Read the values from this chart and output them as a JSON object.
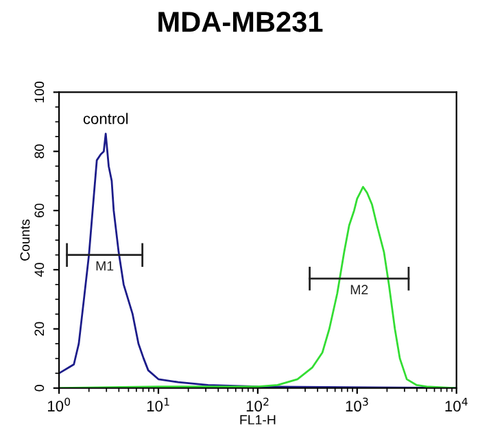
{
  "chart_data": {
    "type": "line",
    "title": "MDA-MB231",
    "xlabel": "FL1-H",
    "ylabel": "Counts",
    "log": "x",
    "grid": false,
    "legend": false,
    "xlim": [
      1,
      10000
    ],
    "xticks": [
      {
        "value": 1,
        "label": "10$^{0}$"
      },
      {
        "value": 10,
        "label": "10$^{1}$"
      },
      {
        "value": 100,
        "label": "10$^{2}$"
      },
      {
        "value": 1000,
        "label": "10$^{3}$"
      },
      {
        "value": 10000,
        "label": "10$^{4}$"
      }
    ],
    "ylim": [
      0,
      100
    ],
    "yticks": [
      0,
      20,
      40,
      60,
      80,
      100
    ],
    "annotations": [
      "control"
    ],
    "series": [
      {
        "color": "#1c1c8a",
        "x": [
          1,
          1.26,
          1.41,
          1.58,
          1.78,
          2,
          2.24,
          2.4,
          2.63,
          2.82,
          2.95,
          3.16,
          3.39,
          3.55,
          3.98,
          4.47,
          5.5,
          6.3,
          7.1,
          7.9,
          10,
          15.8,
          31.6,
          100,
          10000
        ],
        "values": [
          5,
          7,
          8,
          15,
          30,
          45,
          65,
          77,
          79,
          80,
          86,
          75,
          70,
          60,
          46,
          35,
          25,
          15,
          10,
          6,
          3,
          2,
          1,
          0.5,
          0
        ]
      },
      {
        "color": "#33dd33",
        "x": [
          1,
          10,
          100,
          158,
          251,
          355,
          447,
          525,
          631,
          741,
          832,
          933,
          1000,
          1072,
          1148,
          1259,
          1413,
          1585,
          1862,
          2089,
          2399,
          2692,
          3162,
          3981,
          5012,
          10000
        ],
        "values": [
          0,
          0.5,
          0.5,
          1,
          3,
          7,
          12,
          20,
          32,
          46,
          55,
          60,
          64,
          66,
          68,
          66,
          62,
          55,
          46,
          35,
          20,
          10,
          3,
          1,
          0.5,
          0
        ]
      },
      {
        "name": "M1",
        "type": "line",
        "color": "#222222",
        "x": [
          1.2,
          6.9
        ],
        "values": [
          45,
          45
        ],
        "errors": [
          4,
          4
        ]
      },
      {
        "name": "M2",
        "type": "line",
        "color": "#222222",
        "x": [
          333,
          3300
        ],
        "values": [
          37,
          37
        ],
        "errors": [
          4,
          4
        ]
      }
    ]
  }
}
